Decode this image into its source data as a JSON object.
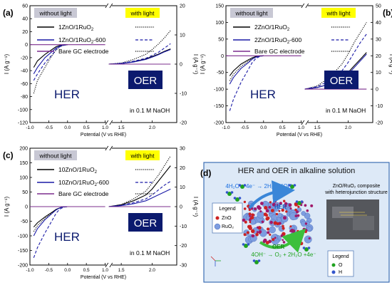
{
  "chart_data": [
    {
      "panel": "(a)",
      "type": "line",
      "legend": {
        "without_light": "without light",
        "with_light": "with light",
        "entries": [
          {
            "pre": "1ZnO/1RuO",
            "sub": "2",
            "post": ""
          },
          {
            "pre": "1ZnO/1RuO",
            "sub": "2",
            "post": "-600"
          },
          {
            "pre": "Bare GC electrode",
            "sub": "",
            "post": ""
          }
        ]
      },
      "xlabel": "Potential (V vs RHE)",
      "ylabel_left": "I (A g⁻¹)",
      "ylabel_right": "I (A g⁻¹)",
      "x_ticks_left": [
        "-1.0",
        "-0.5",
        "0.0",
        "0.5",
        "1.0"
      ],
      "x_ticks_right": [
        "1.5",
        "2.0"
      ],
      "y_left": {
        "ylim": [
          -120,
          60
        ],
        "ticks": [
          -120,
          -100,
          -80,
          -60,
          -40,
          -20,
          0,
          20,
          40,
          60
        ]
      },
      "y_right": {
        "ylim": [
          -20,
          20
        ],
        "ticks": [
          -20,
          -10,
          0,
          10,
          20
        ]
      },
      "HER_label": "HER",
      "OER_label": "OER",
      "electrolyte": "in 0.1 M NaOH",
      "her_series": [
        {
          "name": "1ZnO/1RuO2 (without light)",
          "color": "#000000",
          "dash": "solid",
          "x": [
            -0.9,
            -0.8,
            -0.6,
            -0.4,
            -0.3,
            -0.2,
            -0.1,
            0.0
          ],
          "y": [
            -35,
            -25,
            -15,
            -7,
            -3,
            -1,
            0,
            0
          ]
        },
        {
          "name": "1ZnO/1RuO2 (with light)",
          "color": "#000000",
          "dash": "dot",
          "x": [
            -0.9,
            -0.8,
            -0.6,
            -0.45,
            -0.3,
            -0.2,
            -0.1,
            0.0
          ],
          "y": [
            -75,
            -55,
            -35,
            -20,
            -8,
            -3,
            -1,
            0
          ]
        },
        {
          "name": "1ZnO/1RuO2-600 (without light)",
          "color": "#1a1aa6",
          "dash": "solid",
          "x": [
            -0.9,
            -0.8,
            -0.6,
            -0.4,
            -0.3,
            -0.2,
            -0.1,
            0.0
          ],
          "y": [
            -45,
            -35,
            -20,
            -10,
            -5,
            -2,
            0,
            0
          ]
        },
        {
          "name": "1ZnO/1RuO2-600 (with light)",
          "color": "#1a1aa6",
          "dash": "dash",
          "x": [
            -0.9,
            -0.8,
            -0.6,
            -0.4,
            -0.3,
            -0.2,
            -0.1,
            0.0
          ],
          "y": [
            -55,
            -45,
            -28,
            -15,
            -7,
            -3,
            -1,
            0
          ]
        },
        {
          "name": "Bare GC electrode (without light)",
          "color": "#7b2d8e",
          "dash": "solid",
          "x": [
            -1.0,
            0.0,
            1.0
          ],
          "y": [
            0,
            0,
            0
          ]
        }
      ],
      "oer_series": [
        {
          "name": "1ZnO/1RuO2 (without light)",
          "color": "#000000",
          "dash": "solid",
          "x": [
            1.3,
            1.5,
            1.7,
            1.9,
            2.0,
            2.1,
            2.2,
            2.3
          ],
          "y": [
            0,
            0.2,
            0.8,
            1.8,
            2.6,
            3.4,
            4.4,
            5.2
          ]
        },
        {
          "name": "1ZnO/1RuO2 (with light)",
          "color": "#000000",
          "dash": "dot",
          "x": [
            1.3,
            1.5,
            1.7,
            1.9,
            2.0,
            2.1,
            2.2,
            2.3
          ],
          "y": [
            0,
            0.4,
            1.6,
            3.4,
            5.0,
            6.8,
            9.0,
            11.5
          ]
        },
        {
          "name": "1ZnO/1RuO2-600 (without light)",
          "color": "#1a1aa6",
          "dash": "solid",
          "x": [
            1.3,
            1.5,
            1.7,
            1.9,
            2.0,
            2.1,
            2.2,
            2.3
          ],
          "y": [
            0,
            0.2,
            0.7,
            1.6,
            2.4,
            3.2,
            4.2,
            5.0
          ]
        },
        {
          "name": "1ZnO/1RuO2-600 (with light)",
          "color": "#1a1aa6",
          "dash": "dash",
          "x": [
            1.3,
            1.5,
            1.7,
            1.9,
            2.0,
            2.1,
            2.2,
            2.3
          ],
          "y": [
            0,
            0.3,
            1.0,
            2.0,
            3.0,
            4.0,
            5.5,
            7.0
          ]
        },
        {
          "name": "Bare GC electrode",
          "color": "#7b2d8e",
          "dash": "solid",
          "x": [
            1.3,
            2.3
          ],
          "y": [
            0,
            0
          ]
        }
      ]
    },
    {
      "panel": "(b)",
      "type": "line",
      "legend": {
        "without_light": "without light",
        "with_light": "with light",
        "entries": [
          {
            "pre": "2ZnO/1RuO",
            "sub": "2",
            "post": ""
          },
          {
            "pre": "2ZnO/1RuO",
            "sub": "2",
            "post": "-600"
          },
          {
            "pre": "Bare GC electrode",
            "sub": "",
            "post": ""
          }
        ]
      },
      "xlabel": "Potential (V vs RHE)",
      "ylabel_left": "I (A g⁻¹)",
      "ylabel_right": "I (A g⁻¹)",
      "x_ticks_left": [
        "-1.0",
        "-0.5",
        "0.0",
        "0.5",
        "1.0"
      ],
      "x_ticks_right": [
        "1.5",
        "2.0"
      ],
      "y_left": {
        "ylim": [
          -200,
          150
        ],
        "ticks": [
          -200,
          -150,
          -100,
          -50,
          0,
          50,
          100,
          150
        ]
      },
      "y_right": {
        "ylim": [
          -20,
          50
        ],
        "ticks": [
          -20,
          -10,
          0,
          10,
          20,
          30,
          40,
          50
        ]
      },
      "HER_label": "HER",
      "OER_label": "OER",
      "electrolyte": "in 0.1 M NaOH",
      "her_series": [
        {
          "name": "2ZnO/1RuO2 (without light)",
          "color": "#000000",
          "dash": "solid",
          "x": [
            -0.9,
            -0.8,
            -0.6,
            -0.4,
            -0.3,
            -0.2,
            -0.1,
            0.0
          ],
          "y": [
            -60,
            -45,
            -25,
            -12,
            -6,
            -2,
            0,
            0
          ]
        },
        {
          "name": "2ZnO/1RuO2 (with light)",
          "color": "#000000",
          "dash": "dot",
          "x": [
            -0.9,
            -0.8,
            -0.6,
            -0.4,
            -0.3,
            -0.2,
            -0.1,
            0.0
          ],
          "y": [
            -75,
            -55,
            -32,
            -16,
            -8,
            -3,
            -1,
            0
          ]
        },
        {
          "name": "2ZnO/1RuO2-600 (without light)",
          "color": "#1a1aa6",
          "dash": "solid",
          "x": [
            -0.9,
            -0.8,
            -0.6,
            -0.4,
            -0.3,
            -0.2,
            -0.1,
            0.0
          ],
          "y": [
            -85,
            -65,
            -38,
            -20,
            -10,
            -4,
            -1,
            0
          ]
        },
        {
          "name": "2ZnO/1RuO2-600 (with light)",
          "color": "#1a1aa6",
          "dash": "dash",
          "x": [
            -0.9,
            -0.8,
            -0.6,
            -0.4,
            -0.3,
            -0.2,
            -0.1,
            0.0
          ],
          "y": [
            -165,
            -130,
            -80,
            -40,
            -20,
            -8,
            -2,
            0
          ]
        },
        {
          "name": "Bare GC electrode",
          "color": "#7b2d8e",
          "dash": "solid",
          "x": [
            -1.0,
            0.0,
            1.0
          ],
          "y": [
            0,
            0,
            0
          ]
        }
      ],
      "oer_series": [
        {
          "name": "2ZnO/1RuO2 (without light)",
          "color": "#000000",
          "dash": "solid",
          "x": [
            1.3,
            1.5,
            1.7,
            1.9,
            2.0,
            2.1,
            2.2,
            2.3
          ],
          "y": [
            0,
            1,
            3,
            7,
            10,
            14,
            18,
            22
          ]
        },
        {
          "name": "2ZnO/1RuO2 (with light)",
          "color": "#000000",
          "dash": "dot",
          "x": [
            1.3,
            1.5,
            1.7,
            1.9,
            2.0,
            2.1,
            2.2,
            2.3
          ],
          "y": [
            0,
            2,
            7,
            15,
            21,
            28,
            34,
            40
          ]
        },
        {
          "name": "2ZnO/1RuO2-600 (without light)",
          "color": "#1a1aa6",
          "dash": "solid",
          "x": [
            1.3,
            1.5,
            1.7,
            1.9,
            2.0,
            2.1,
            2.2,
            2.3
          ],
          "y": [
            0,
            1,
            3,
            6,
            9,
            13,
            17,
            21
          ]
        },
        {
          "name": "2ZnO/1RuO2-600 (with light)",
          "color": "#1a1aa6",
          "dash": "dash",
          "x": [
            1.3,
            1.5,
            1.7,
            1.9,
            2.0,
            2.1,
            2.2,
            2.3
          ],
          "y": [
            0,
            1.5,
            5,
            11,
            16,
            22,
            28,
            33
          ]
        },
        {
          "name": "Bare GC electrode",
          "color": "#7b2d8e",
          "dash": "solid",
          "x": [
            1.3,
            2.3
          ],
          "y": [
            0,
            0
          ]
        }
      ]
    },
    {
      "panel": "(c)",
      "type": "line",
      "legend": {
        "without_light": "without light",
        "with_light": "with light",
        "entries": [
          {
            "pre": "10ZnO/1RuO",
            "sub": "2",
            "post": ""
          },
          {
            "pre": "10ZnO/1RuO",
            "sub": "2",
            "post": "-600"
          },
          {
            "pre": "Bare GC electrode",
            "sub": "",
            "post": ""
          }
        ]
      },
      "xlabel": "Potential (V vs RHE)",
      "ylabel_left": "I (A g⁻¹)",
      "ylabel_right": "I (A g⁻¹)",
      "x_ticks_left": [
        "-1.0",
        "-0.5",
        "0.0",
        "0.5",
        "1.0"
      ],
      "x_ticks_right": [
        "1.5",
        "2.0"
      ],
      "y_left": {
        "ylim": [
          -200,
          200
        ],
        "ticks": [
          -200,
          -150,
          -100,
          -50,
          0,
          50,
          100,
          150,
          200
        ]
      },
      "y_right": {
        "ylim": [
          -30,
          30
        ],
        "ticks": [
          -30,
          -20,
          -10,
          0,
          10,
          20,
          30
        ]
      },
      "HER_label": "HER",
      "OER_label": "OER",
      "electrolyte": "in 0.1 M NaOH",
      "her_series": [
        {
          "name": "10ZnO/1RuO2 (without light)",
          "color": "#000000",
          "dash": "solid",
          "x": [
            -0.9,
            -0.8,
            -0.6,
            -0.4,
            -0.3,
            -0.2,
            -0.1,
            0.0
          ],
          "y": [
            -70,
            -55,
            -35,
            -18,
            -9,
            -4,
            -1,
            0
          ]
        },
        {
          "name": "10ZnO/1RuO2 (with light)",
          "color": "#000000",
          "dash": "dot",
          "x": [
            -0.9,
            -0.8,
            -0.6,
            -0.4,
            -0.3,
            -0.2,
            -0.1,
            0.0
          ],
          "y": [
            -85,
            -65,
            -40,
            -20,
            -10,
            -4,
            -1,
            0
          ]
        },
        {
          "name": "10ZnO/1RuO2-600 (without light)",
          "color": "#1a1aa6",
          "dash": "solid",
          "x": [
            -0.9,
            -0.8,
            -0.6,
            -0.4,
            -0.3,
            -0.2,
            -0.1,
            0.0
          ],
          "y": [
            -100,
            -75,
            -45,
            -22,
            -11,
            -4,
            -1,
            0
          ]
        },
        {
          "name": "10ZnO/1RuO2-600 (with light)",
          "color": "#1a1aa6",
          "dash": "dash",
          "x": [
            -0.9,
            -0.8,
            -0.6,
            -0.4,
            -0.3,
            -0.2,
            -0.1,
            0.0
          ],
          "y": [
            -175,
            -140,
            -90,
            -45,
            -22,
            -8,
            -2,
            0
          ]
        },
        {
          "name": "Bare GC electrode",
          "color": "#7b2d8e",
          "dash": "solid",
          "x": [
            -1.0,
            0.0,
            1.0
          ],
          "y": [
            0,
            0,
            0
          ]
        }
      ],
      "oer_series": [
        {
          "name": "10ZnO/1RuO2 (without light)",
          "color": "#000000",
          "dash": "solid",
          "x": [
            1.3,
            1.5,
            1.7,
            1.9,
            2.0,
            2.1,
            2.2,
            2.3
          ],
          "y": [
            0,
            1,
            3,
            6,
            9,
            13,
            17,
            21
          ]
        },
        {
          "name": "10ZnO/1RuO2 (with light)",
          "color": "#000000",
          "dash": "dot",
          "x": [
            1.3,
            1.5,
            1.7,
            1.9,
            2.0,
            2.1,
            2.2,
            2.3
          ],
          "y": [
            0,
            1,
            4,
            8,
            12,
            16,
            21,
            26
          ]
        },
        {
          "name": "10ZnO/1RuO2-600 (without light)",
          "color": "#1a1aa6",
          "dash": "solid",
          "x": [
            1.3,
            1.5,
            1.7,
            1.9,
            2.0,
            2.1,
            2.2,
            2.3
          ],
          "y": [
            0,
            0.5,
            1.5,
            3,
            4.5,
            6,
            7.5,
            9
          ]
        },
        {
          "name": "10ZnO/1RuO2-600 (with light)",
          "color": "#1a1aa6",
          "dash": "dash",
          "x": [
            1.3,
            1.5,
            1.7,
            1.9,
            2.0,
            2.1,
            2.2,
            2.3
          ],
          "y": [
            0,
            0.7,
            2,
            4,
            6,
            8.5,
            11,
            13
          ]
        },
        {
          "name": "Bare GC electrode",
          "color": "#7b2d8e",
          "dash": "solid",
          "x": [
            1.3,
            2.3
          ],
          "y": [
            0,
            0
          ]
        }
      ]
    }
  ],
  "panel_d": {
    "label": "(d)",
    "title": "HER and OER in alkaline solution",
    "her_equation": "4H₂O + 4e⁻ → 2H₂ + 4OH⁻",
    "oer_equation": "4OH⁻ → O₂ + 2H₂O +4e⁻",
    "her_label": "HER",
    "oer_label": "OER",
    "legend1": {
      "title": "Legend",
      "items": [
        "ZnO",
        "RuO₂"
      ]
    },
    "legend2": {
      "title": "Legend",
      "items": [
        "O",
        "H"
      ]
    },
    "composite_line1": "ZnO/RuO₂ composite",
    "composite_line2": "with heterojunction structure"
  },
  "colors": {
    "legend_gray": "#c8c8d4",
    "legend_yellow": "#ffff00",
    "box_navy": "#0b1a6e",
    "bare_gc": "#7b2d8e",
    "series_blue": "#1a1aa6",
    "panel_d_border": "#3d6fb5",
    "panel_d_bg": "#dde9f7",
    "equation_blue": "#1a6fe0",
    "equation_green": "#1fa21f",
    "zno_red": "#cc2222",
    "ruo2_blue": "#7d9de0"
  }
}
